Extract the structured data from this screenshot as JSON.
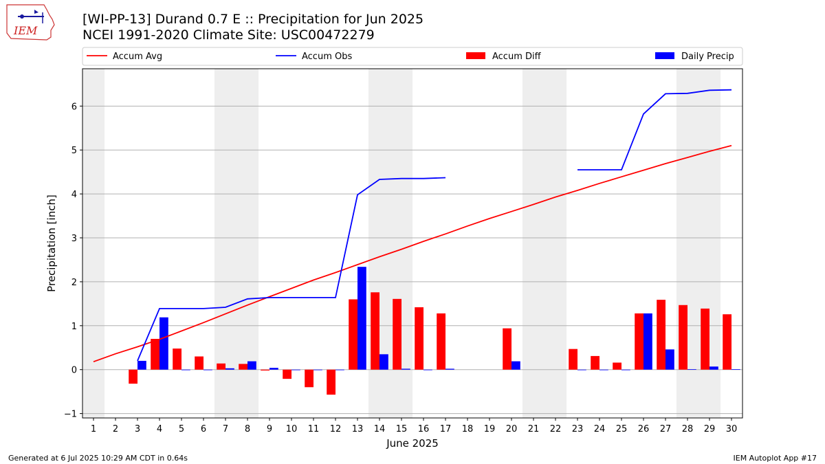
{
  "titles": {
    "line1": "[WI-PP-13] Durand 0.7 E :: Precipitation for Jun 2025",
    "line2": "NCEI 1991-2020 Climate Site: USC00472279"
  },
  "logo_text": "IEM",
  "footer": {
    "left": "Generated at 6 Jul 2025 10:29 AM CDT in 0.64s",
    "right": "IEM Autoplot App #17"
  },
  "colors": {
    "accum_avg": "#ff0000",
    "accum_obs": "#0000ff",
    "accum_diff": "#ff0000",
    "daily_precip": "#0000ff",
    "weekend_shade": "#eeeeee",
    "grid": "#b0b0b0"
  },
  "chart_data": {
    "type": "bar",
    "xlabel": "June 2025",
    "ylabel": "Precipitation [inch]",
    "xlim": [
      0.5,
      30.5
    ],
    "ylim": [
      -1.1,
      6.85
    ],
    "yticks": [
      -1,
      0,
      1,
      2,
      3,
      4,
      5,
      6
    ],
    "grid": "horizontal",
    "legend_placement": "top",
    "categories": [
      1,
      2,
      3,
      4,
      5,
      6,
      7,
      8,
      9,
      10,
      11,
      12,
      13,
      14,
      15,
      16,
      17,
      18,
      19,
      20,
      21,
      22,
      23,
      24,
      25,
      26,
      27,
      28,
      29,
      30
    ],
    "weekend_days": [
      1,
      7,
      8,
      14,
      15,
      21,
      22,
      28,
      29
    ],
    "series": [
      {
        "name": "Accum Avg",
        "kind": "line",
        "values": [
          0.18,
          0.36,
          0.52,
          0.69,
          0.88,
          1.07,
          1.27,
          1.47,
          1.66,
          1.85,
          2.04,
          2.21,
          2.39,
          2.57,
          2.74,
          2.92,
          3.09,
          3.27,
          3.44,
          3.6,
          3.76,
          3.93,
          4.08,
          4.24,
          4.39,
          4.54,
          4.69,
          4.83,
          4.97,
          5.1
        ]
      },
      {
        "name": "Accum Obs",
        "kind": "line",
        "values": [
          null,
          null,
          0.2,
          1.39,
          1.39,
          1.39,
          1.42,
          1.61,
          1.64,
          1.64,
          1.64,
          1.64,
          3.98,
          4.33,
          4.35,
          4.35,
          4.37,
          null,
          null,
          null,
          null,
          null,
          4.55,
          4.55,
          4.55,
          5.82,
          6.28,
          6.29,
          6.36,
          6.37
        ]
      },
      {
        "name": "Accum Diff",
        "kind": "bar",
        "values": [
          null,
          null,
          -0.32,
          0.7,
          0.48,
          0.3,
          0.14,
          0.13,
          -0.02,
          -0.21,
          -0.4,
          -0.57,
          1.6,
          1.76,
          1.61,
          1.42,
          1.28,
          null,
          null,
          0.94,
          null,
          null,
          0.47,
          0.31,
          0.16,
          1.28,
          1.59,
          1.47,
          1.39,
          1.26
        ]
      },
      {
        "name": "Daily Precip",
        "kind": "bar",
        "values": [
          null,
          null,
          0.2,
          1.19,
          0,
          0,
          0.03,
          0.19,
          0.04,
          0,
          0,
          0,
          2.34,
          0.35,
          0.02,
          0,
          0.02,
          null,
          null,
          0.19,
          null,
          null,
          0,
          0,
          0,
          1.28,
          0.46,
          0.01,
          0.07,
          0.01
        ]
      }
    ]
  }
}
